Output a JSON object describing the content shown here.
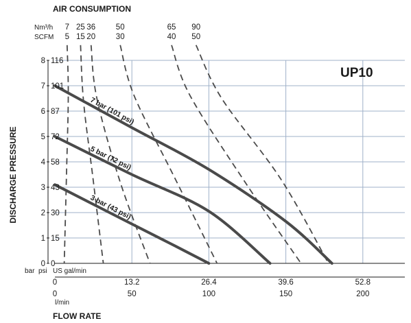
{
  "chart_data": {
    "type": "line",
    "title": "AIR CONSUMPTION",
    "model": "UP10",
    "ylabel": "DISCHARGE PRESSURE",
    "xlabel": "FLOW RATE",
    "x_unit_left": "US gal/min",
    "x_unit_lmin": "l/min",
    "y_unit_bar": "bar",
    "y_unit_psi": "psi",
    "air_unit_nm3h": "Nm³/h",
    "air_unit_scfm": "SCFM",
    "ylim": [
      0,
      8
    ],
    "xlim_gpm": [
      0,
      60
    ],
    "y_ticks_bar": [
      "0",
      "1",
      "2",
      "3",
      "4",
      "5",
      "6",
      "7",
      "8"
    ],
    "y_ticks_psi": [
      "0",
      "15",
      "30",
      "43",
      "58",
      "72",
      "87",
      "101",
      "116"
    ],
    "x_ticks_gpm": [
      "0",
      "13.2",
      "26.4",
      "39.6",
      "52.8"
    ],
    "x_ticks_lmin": [
      "0",
      "50",
      "100",
      "150",
      "200"
    ],
    "series": [
      {
        "name": "7 bar (101 psi)",
        "x": [
          0,
          13.2,
          26.4,
          39.6,
          47.5
        ],
        "y": [
          7.0,
          5.35,
          3.7,
          1.65,
          0
        ]
      },
      {
        "name": "5 bar (72 psi)",
        "x": [
          0,
          13.2,
          26.4,
          36.9
        ],
        "y": [
          5.0,
          3.5,
          2.05,
          0
        ]
      },
      {
        "name": "3 bar (43 psi)",
        "x": [
          0,
          13.2,
          19.8,
          26.4
        ],
        "y": [
          3.1,
          1.55,
          0.78,
          0
        ]
      }
    ],
    "air_consumption": [
      {
        "nm3h": "7",
        "scfm": "5",
        "x": [
          2.1,
          2.3,
          2.0,
          1.6
        ],
        "y": [
          8.6,
          6.6,
          3.6,
          0
        ]
      },
      {
        "nm3h": "25",
        "scfm": "15",
        "x": [
          4.4,
          4.9,
          6.5,
          8.3
        ],
        "y": [
          8.6,
          6.4,
          3.4,
          0
        ]
      },
      {
        "nm3h": "36",
        "scfm": "20",
        "x": [
          6.2,
          7.2,
          11.2,
          16.3
        ],
        "y": [
          8.6,
          6.5,
          3.2,
          0
        ]
      },
      {
        "nm3h": "50",
        "scfm": "30",
        "x": [
          11.2,
          13.6,
          20.7,
          27.8
        ],
        "y": [
          8.6,
          6.6,
          3.3,
          0
        ]
      },
      {
        "nm3h": "65",
        "scfm": "40",
        "x": [
          20.0,
          23.2,
          32.9,
          42.2
        ],
        "y": [
          8.6,
          6.6,
          3.1,
          0
        ]
      },
      {
        "nm3h": "90",
        "scfm": "50",
        "x": [
          24.2,
          28.6,
          38.8,
          46.9
        ],
        "y": [
          8.6,
          6.5,
          3.3,
          0
        ]
      }
    ]
  }
}
